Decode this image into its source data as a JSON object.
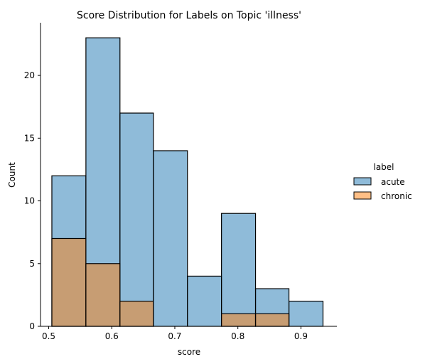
{
  "chart_data": {
    "type": "bar",
    "title": "Score Distribution for Labels on Topic 'illness'",
    "xlabel": "score",
    "ylabel": "Count",
    "xlim": [
      0.487,
      0.957
    ],
    "ylim": [
      0,
      24.2
    ],
    "x_ticks": [
      0.5,
      0.6,
      0.7,
      0.8,
      0.9
    ],
    "x_tick_labels": [
      "0.5",
      "0.6",
      "0.7",
      "0.8",
      "0.9"
    ],
    "y_ticks": [
      0,
      5,
      10,
      15,
      20
    ],
    "y_tick_labels": [
      "0",
      "5",
      "10",
      "15",
      "20"
    ],
    "bin_edges": [
      0.505,
      0.559,
      0.613,
      0.666,
      0.72,
      0.774,
      0.828,
      0.881,
      0.935
    ],
    "series": [
      {
        "name": "acute",
        "color": "#1f77b4",
        "values": [
          12,
          23,
          17,
          14,
          4,
          9,
          3,
          2
        ]
      },
      {
        "name": "chronic",
        "color": "#ff7f0e",
        "values": [
          7,
          5,
          2,
          0,
          0,
          1,
          1,
          0
        ]
      }
    ],
    "legend": {
      "title": "label",
      "placement": "right",
      "entries": [
        "acute",
        "chronic"
      ]
    },
    "grid": false
  }
}
